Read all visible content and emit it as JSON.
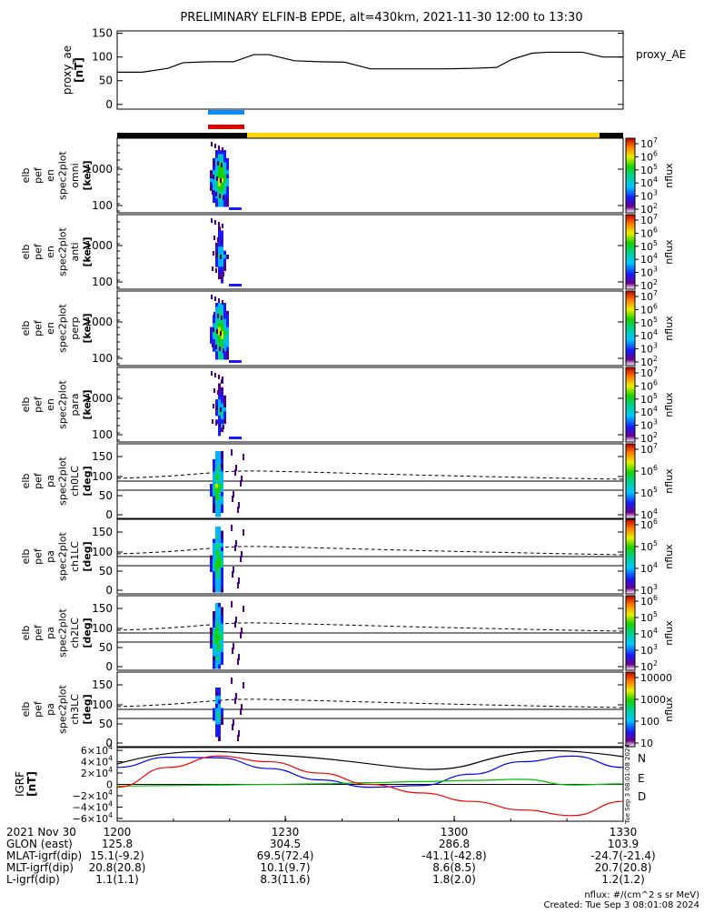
{
  "title": "PRELIMINARY ELFIN-B EPDE, alt=430km, 2021-11-30 12:00 to 13:30",
  "colors": {
    "grf_N": "#0000ff",
    "grf_E": "#00c000",
    "grf_D": "#ff0000",
    "science_bar": "#ffd700",
    "bar_blue": "#0a8cff",
    "bar_red": "#e00000"
  },
  "chart_data": [
    {
      "type": "line",
      "panel": "proxy_ae",
      "ylabel": "proxy_ae",
      "yunit": "[nT]",
      "legend": "proxy_AE",
      "yticks": [
        "150",
        "100",
        "50",
        "0"
      ],
      "ylim": [
        -10,
        155
      ],
      "x": [
        0,
        5,
        10,
        13,
        18,
        23,
        27,
        30,
        35,
        40,
        45,
        50,
        55,
        60,
        65,
        70,
        75,
        78,
        82,
        85,
        88,
        92,
        96,
        100
      ],
      "values": [
        68,
        68,
        76,
        88,
        90,
        90,
        105,
        105,
        92,
        90,
        89,
        75,
        75,
        75,
        75,
        76,
        78,
        95,
        108,
        110,
        110,
        110,
        100,
        100
      ]
    },
    {
      "type": "heatmap",
      "panel": "spec_omni",
      "ylabel_lines": [
        "elb",
        "pef",
        "en",
        "spec2plot",
        "omni",
        "[keV]"
      ],
      "yticks": [
        "1000",
        "100"
      ],
      "cbar_ticks": [
        "10^7",
        "10^6",
        "10^5",
        "10^4",
        "10^3",
        "10^2"
      ],
      "cbar_label": "nflux"
    },
    {
      "type": "heatmap",
      "panel": "spec_anti",
      "ylabel_lines": [
        "elb",
        "pef",
        "en",
        "spec2plot",
        "anti",
        "[keV]"
      ],
      "yticks": [
        "1000",
        "100"
      ],
      "cbar_ticks": [
        "10^7",
        "10^6",
        "10^5",
        "10^4",
        "10^3",
        "10^2"
      ],
      "cbar_label": "nflux"
    },
    {
      "type": "heatmap",
      "panel": "spec_perp",
      "ylabel_lines": [
        "elb",
        "pef",
        "en",
        "spec2plot",
        "perp",
        "[keV]"
      ],
      "yticks": [
        "1000",
        "100"
      ],
      "cbar_ticks": [
        "10^7",
        "10^6",
        "10^5",
        "10^4",
        "10^3",
        "10^2"
      ],
      "cbar_label": "nflux"
    },
    {
      "type": "heatmap",
      "panel": "spec_para",
      "ylabel_lines": [
        "elb",
        "pef",
        "en",
        "spec2plot",
        "para",
        "[keV]"
      ],
      "yticks": [
        "1000",
        "100"
      ],
      "cbar_ticks": [
        "10^7",
        "10^6",
        "10^5",
        "10^4",
        "10^3",
        "10^2"
      ],
      "cbar_label": "nflux"
    },
    {
      "type": "heatmap",
      "panel": "pa_ch0LC",
      "ylabel_lines": [
        "elb",
        "pef",
        "pa",
        "spec2plot",
        "ch0LC",
        "[deg]"
      ],
      "yticks": [
        "150",
        "100",
        "50",
        "0"
      ],
      "cbar_ticks": [
        "10^7",
        "10^6",
        "10^5",
        "10^4"
      ],
      "cbar_label": "nflux"
    },
    {
      "type": "heatmap",
      "panel": "pa_ch1LC",
      "ylabel_lines": [
        "elb",
        "pef",
        "pa",
        "spec2plot",
        "ch1LC",
        "[deg]"
      ],
      "yticks": [
        "150",
        "100",
        "50",
        "0"
      ],
      "cbar_ticks": [
        "10^6",
        "10^5",
        "10^4",
        "10^3"
      ],
      "cbar_label": "nflux"
    },
    {
      "type": "heatmap",
      "panel": "pa_ch2LC",
      "ylabel_lines": [
        "elb",
        "pef",
        "pa",
        "spec2plot",
        "ch2LC",
        "[deg]"
      ],
      "yticks": [
        "150",
        "100",
        "50",
        "0"
      ],
      "cbar_ticks": [
        "10^6",
        "10^5",
        "10^4",
        "10^3",
        "10^2"
      ],
      "cbar_label": "nflux"
    },
    {
      "type": "heatmap",
      "panel": "pa_ch3LC",
      "ylabel_lines": [
        "elb",
        "pef",
        "pa",
        "spec2plot",
        "ch3LC",
        "[deg]"
      ],
      "yticks": [
        "150",
        "100",
        "50",
        "0"
      ],
      "cbar_ticks": [
        "10000",
        "1000",
        "100",
        "10"
      ],
      "cbar_label": "nflux"
    },
    {
      "type": "line",
      "panel": "grf",
      "ylabel": "IGRF",
      "yunit": "[nT]",
      "yticks": [
        "6×10^4",
        "4×10^4",
        "2×10^4",
        "0",
        "−2×10^4",
        "−4×10^4",
        "−6×10^4"
      ],
      "ylim": [
        -65000,
        65000
      ],
      "x": [
        0,
        10,
        20,
        30,
        40,
        50,
        60,
        70,
        80,
        90,
        100
      ],
      "series": [
        {
          "name": "N",
          "values": [
            30000,
            48000,
            47000,
            28000,
            8000,
            -5000,
            -2000,
            18000,
            40000,
            50000,
            30000
          ]
        },
        {
          "name": "E",
          "values": [
            -3000,
            -2000,
            -1000,
            0,
            1000,
            3000,
            5000,
            7000,
            9000,
            -1000,
            1000
          ]
        },
        {
          "name": "D",
          "values": [
            -5000,
            30000,
            50000,
            40000,
            20000,
            0,
            -15000,
            -30000,
            -45000,
            -55000,
            -30000
          ]
        }
      ],
      "legend": [
        "N",
        "E",
        "D"
      ]
    }
  ],
  "xaxis": {
    "label": "2021 Nov 30",
    "ticks": [
      "1200",
      "1230",
      "1300",
      "1330"
    ]
  },
  "rows": [
    {
      "label": "GLON (east)",
      "values": [
        "125.8",
        "304.5",
        "286.8",
        "103.9"
      ]
    },
    {
      "label": "MLAT-igrf(dip)",
      "values": [
        "15.1(-9.2)",
        "69.5(72.4)",
        "-41.1(-42.8)",
        "-24.7(-21.4)"
      ]
    },
    {
      "label": "MLT-igrf(dip)",
      "values": [
        "20.8(20.8)",
        "10.1(9.7)",
        "8.6(8.5)",
        "20.7(20.8)"
      ]
    },
    {
      "label": "L-igrf(dip)",
      "values": [
        "1.1(1.1)",
        "8.3(11.6)",
        "1.8(2.0)",
        "1.2(1.2)"
      ]
    }
  ],
  "footer": {
    "line1": "nflux: #/(cm^2 s sr MeV)",
    "line2": "Created: Tue Sep  3 08:01:08 2024",
    "rot": "Tue Sep  3 08:01:08 2024"
  }
}
